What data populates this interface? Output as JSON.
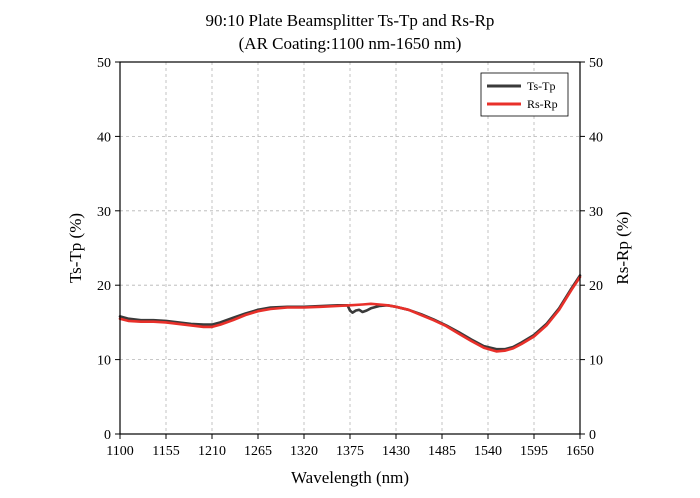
{
  "chart_data": {
    "type": "line",
    "title": "90:10 Plate Beamsplitter Ts-Tp and Rs-Rp",
    "subtitle": "(AR Coating:1100 nm-1650 nm)",
    "xlabel": "Wavelength (nm)",
    "ylabel": "Ts-Tp (%)",
    "ylabel_right": "Rs-Rp (%)",
    "xlim": [
      1100,
      1650
    ],
    "ylim": [
      0,
      50
    ],
    "xticks": [
      1100,
      1155,
      1210,
      1265,
      1320,
      1375,
      1430,
      1485,
      1540,
      1595,
      1650
    ],
    "yticks": [
      0,
      10,
      20,
      30,
      40,
      50
    ],
    "grid": true,
    "legend_position": "top-right",
    "series": [
      {
        "name": "Ts-Tp",
        "color": "#3a3a3a",
        "x": [
          1100,
          1110,
          1125,
          1140,
          1155,
          1170,
          1185,
          1200,
          1210,
          1220,
          1235,
          1250,
          1265,
          1280,
          1300,
          1320,
          1340,
          1360,
          1372,
          1375,
          1378,
          1382,
          1386,
          1390,
          1395,
          1400,
          1410,
          1420,
          1430,
          1445,
          1460,
          1475,
          1490,
          1505,
          1520,
          1535,
          1550,
          1560,
          1570,
          1580,
          1595,
          1610,
          1625,
          1640,
          1650
        ],
        "y": [
          15.8,
          15.5,
          15.3,
          15.3,
          15.2,
          15.0,
          14.8,
          14.7,
          14.7,
          15.0,
          15.6,
          16.2,
          16.7,
          17.0,
          17.1,
          17.1,
          17.2,
          17.3,
          17.3,
          16.6,
          16.3,
          16.6,
          16.7,
          16.4,
          16.6,
          16.9,
          17.2,
          17.3,
          17.1,
          16.7,
          16.1,
          15.4,
          14.6,
          13.7,
          12.7,
          11.8,
          11.4,
          11.4,
          11.7,
          12.3,
          13.3,
          14.8,
          16.9,
          19.6,
          21.3
        ]
      },
      {
        "name": "Rs-Rp",
        "color": "#e8302a",
        "x": [
          1100,
          1110,
          1125,
          1140,
          1155,
          1170,
          1185,
          1200,
          1210,
          1220,
          1235,
          1250,
          1265,
          1280,
          1300,
          1320,
          1340,
          1360,
          1375,
          1390,
          1400,
          1410,
          1420,
          1430,
          1445,
          1460,
          1475,
          1490,
          1505,
          1520,
          1535,
          1550,
          1560,
          1570,
          1580,
          1595,
          1610,
          1625,
          1640,
          1650
        ],
        "y": [
          15.5,
          15.2,
          15.1,
          15.1,
          15.0,
          14.8,
          14.6,
          14.4,
          14.4,
          14.7,
          15.3,
          16.0,
          16.5,
          16.8,
          17.0,
          17.0,
          17.1,
          17.2,
          17.3,
          17.4,
          17.5,
          17.4,
          17.3,
          17.1,
          16.7,
          16.0,
          15.3,
          14.5,
          13.5,
          12.5,
          11.6,
          11.1,
          11.2,
          11.5,
          12.1,
          13.1,
          14.6,
          16.7,
          19.4,
          21.1
        ]
      }
    ]
  }
}
